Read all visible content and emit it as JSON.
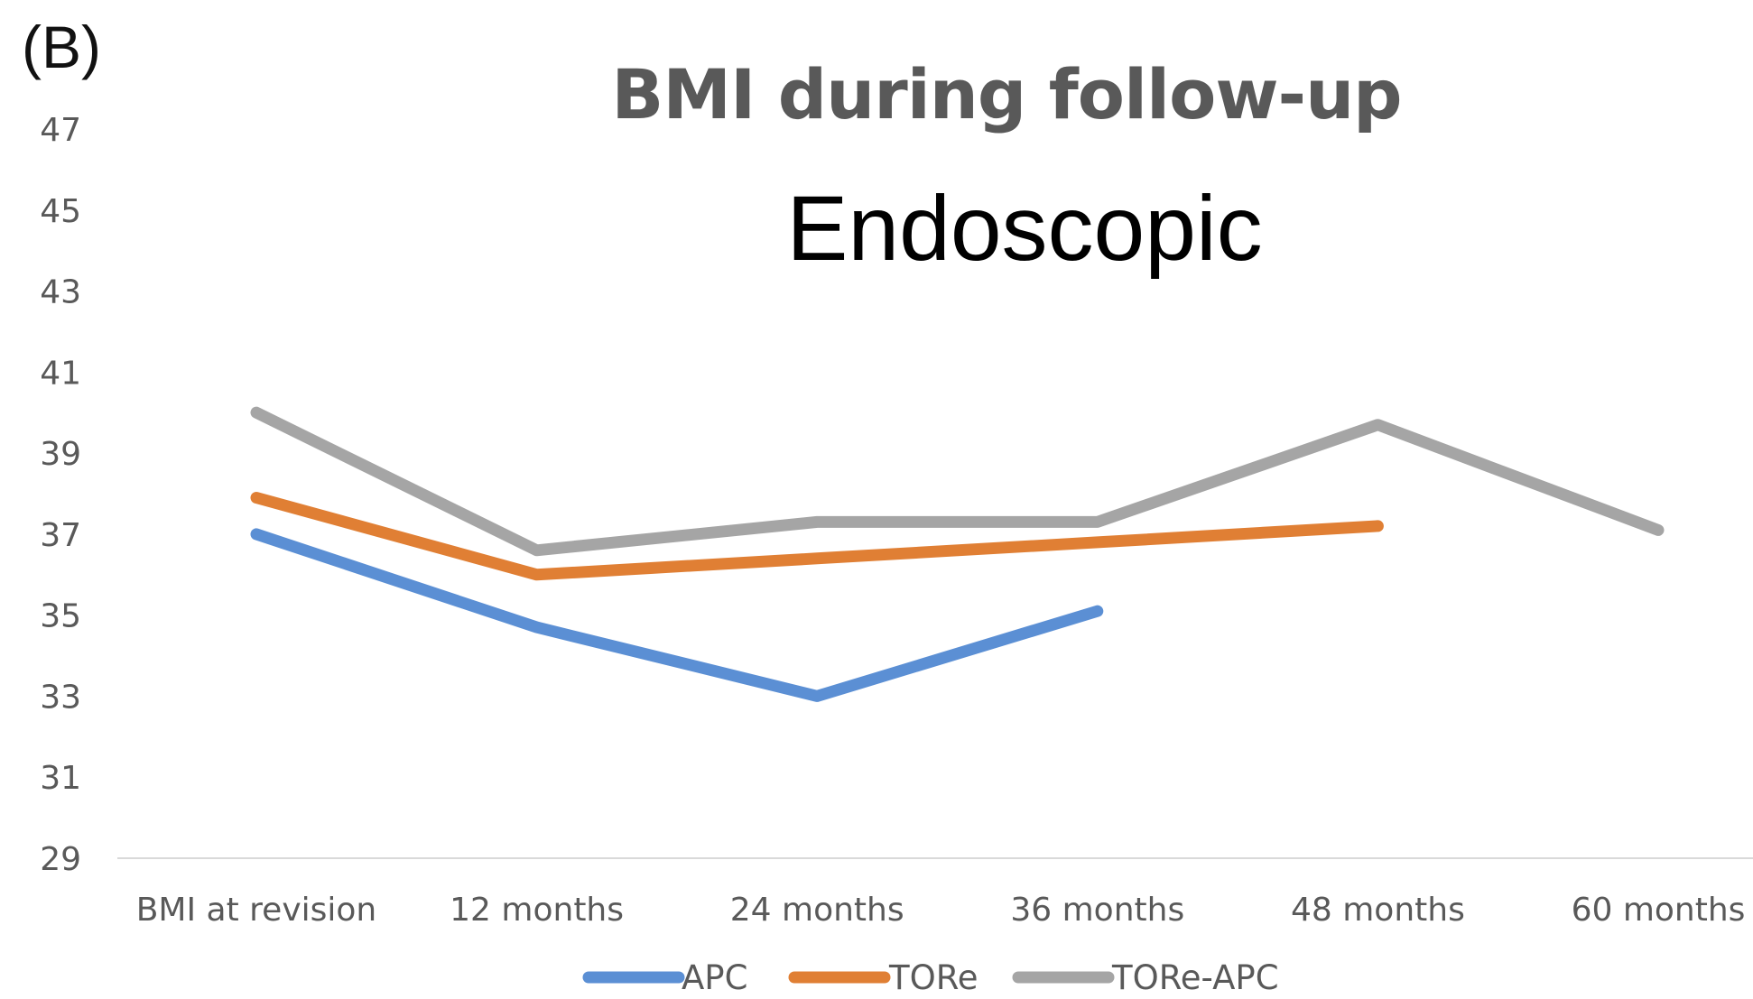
{
  "panel_label": "(B)",
  "chart_data": {
    "type": "line",
    "title": "BMI during follow-up",
    "subtitle": "Endoscopic",
    "xlabel": "",
    "ylabel": "",
    "categories": [
      "BMI at revision",
      "12 months",
      "24 months",
      "36 months",
      "48 months",
      "60 months"
    ],
    "ylim": [
      29,
      47
    ],
    "yticks": [
      29,
      31,
      33,
      35,
      37,
      39,
      41,
      43,
      45,
      47
    ],
    "grid": false,
    "legend_position": "bottom",
    "series": [
      {
        "name": "APC",
        "color": "#5b8fd4",
        "values": [
          37.0,
          34.7,
          33.0,
          35.1,
          null,
          null
        ]
      },
      {
        "name": "TORe",
        "color": "#e07f34",
        "values": [
          37.9,
          36.0,
          36.4,
          36.8,
          37.2,
          null
        ]
      },
      {
        "name": "TORe-APC",
        "color": "#a5a5a5",
        "values": [
          40.0,
          36.6,
          37.3,
          37.3,
          39.7,
          37.1
        ]
      }
    ]
  }
}
